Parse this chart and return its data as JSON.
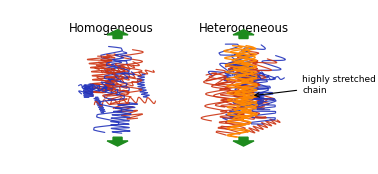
{
  "title_left": "Homogeneous",
  "title_right": "Heterogeneous",
  "annotation_line1": "highly stretched",
  "annotation_line2": "chain",
  "arrow_color": "#1e8b1e",
  "blue_color": "#2233bb",
  "red_color": "#cc3311",
  "orange_color": "#ff8800",
  "bg_color": "#ffffff",
  "lcx": 0.24,
  "rcx": 0.67
}
